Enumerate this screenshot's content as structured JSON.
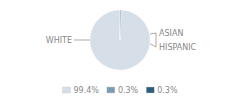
{
  "chart_data": {
    "type": "pie",
    "categories": [
      "WHITE",
      "ASIAN",
      "HISPANIC"
    ],
    "values": [
      99.4,
      0.3,
      0.3
    ],
    "value_labels": [
      "99.4%",
      "0.3%",
      "0.3%"
    ],
    "colors": [
      "#d6dfe8",
      "#7a9db5",
      "#2d5f7a"
    ],
    "legend": "bottom"
  }
}
